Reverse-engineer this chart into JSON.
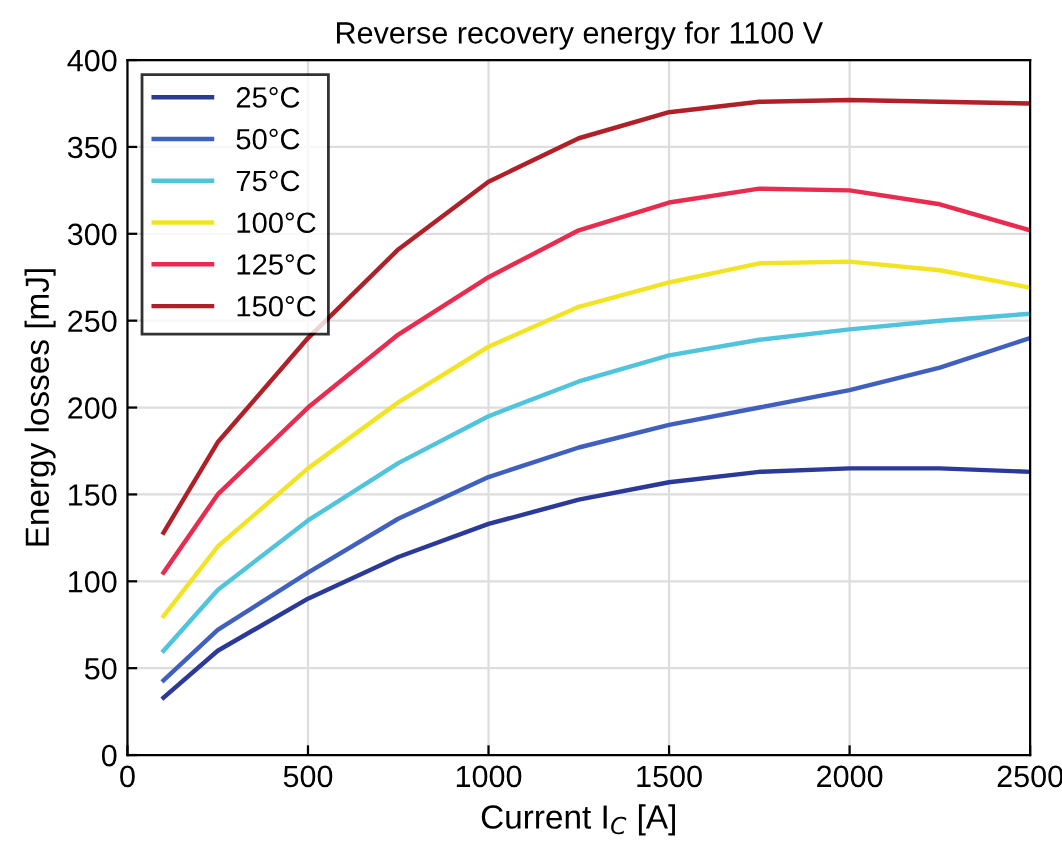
{
  "chart_data": {
    "type": "line",
    "title": "Reverse recovery energy for 1100 V",
    "xlabel": "Current I$_{C}$ [A]",
    "ylabel": "Energy losses [mJ]",
    "x": [
      100,
      250,
      500,
      750,
      1000,
      1250,
      1500,
      1750,
      2000,
      2250,
      2500
    ],
    "series": [
      {
        "name": "25°C",
        "color": "#2b3a98",
        "values": [
          33,
          60,
          90,
          114,
          133,
          147,
          157,
          163,
          165,
          165,
          163
        ]
      },
      {
        "name": "50°C",
        "color": "#4060c0",
        "values": [
          43,
          72,
          105,
          136,
          160,
          177,
          190,
          200,
          210,
          223,
          240
        ]
      },
      {
        "name": "75°C",
        "color": "#4fc4dc",
        "values": [
          60,
          95,
          135,
          168,
          195,
          215,
          230,
          239,
          245,
          250,
          254
        ]
      },
      {
        "name": "100°C",
        "color": "#f2e424",
        "values": [
          80,
          120,
          165,
          203,
          235,
          258,
          272,
          283,
          284,
          279,
          269
        ]
      },
      {
        "name": "125°C",
        "color": "#e82c50",
        "values": [
          105,
          150,
          200,
          242,
          275,
          302,
          318,
          326,
          325,
          317,
          302
        ]
      },
      {
        "name": "150°C",
        "color": "#b02028",
        "values": [
          128,
          180,
          240,
          291,
          330,
          355,
          370,
          376,
          377,
          376,
          375
        ]
      }
    ],
    "xlim": [
      0,
      2500
    ],
    "ylim": [
      0,
      400
    ],
    "xticks": [
      0,
      500,
      1000,
      1500,
      2000,
      2500
    ],
    "yticks": [
      0,
      50,
      100,
      150,
      200,
      250,
      300,
      350,
      400
    ],
    "grid": true,
    "legend": "top left",
    "marker": "none",
    "line_style": "solid"
  }
}
